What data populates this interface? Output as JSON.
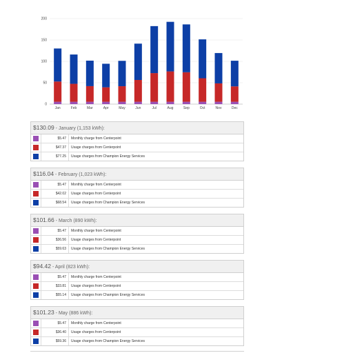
{
  "colors": {
    "monthly": "#9a4fb4",
    "centerpoint": "#c62828",
    "champion": "#0d3fa6"
  },
  "chart_data": {
    "type": "bar",
    "stacked": true,
    "categories": [
      "Jan",
      "Feb",
      "Mar",
      "Apr",
      "May",
      "Jun",
      "Jul",
      "Aug",
      "Sep",
      "Oct",
      "Nov",
      "Dec"
    ],
    "ylim": [
      0,
      200
    ],
    "yticks": [
      0,
      50,
      100,
      150,
      200
    ],
    "grid": true,
    "series": [
      {
        "key": "monthly",
        "color": "#9a4fb4",
        "values": [
          5.47,
          5.47,
          5.47,
          5.47,
          5.47,
          5.47,
          5.47,
          5.47,
          5.47,
          5.47,
          5.47,
          5.47
        ]
      },
      {
        "key": "centerpoint",
        "color": "#c62828",
        "values": [
          47.37,
          42.02,
          36.56,
          33.81,
          36.4,
          51,
          67,
          71,
          69,
          55,
          43,
          36
        ]
      },
      {
        "key": "champion",
        "color": "#0d3fa6",
        "values": [
          77.25,
          68.54,
          59.63,
          55.14,
          59.36,
          85,
          110,
          116,
          112,
          91,
          71,
          60
        ]
      }
    ]
  },
  "months": [
    {
      "total": "$130.09",
      "label": " - January (1,153 kWh):",
      "items": [
        {
          "amount": "$5.47",
          "desc": "Monthly charge from Centerpoint",
          "color": "#9a4fb4"
        },
        {
          "amount": "$47.37",
          "desc": "Usage charges from Centerpoint",
          "color": "#c62828"
        },
        {
          "amount": "$77.25",
          "desc": "Usage charges from Champion Energy Services",
          "color": "#0d3fa6"
        }
      ]
    },
    {
      "total": "$116.04",
      "label": " - February (1,023 kWh):",
      "items": [
        {
          "amount": "$5.47",
          "desc": "Monthly charge from Centerpoint",
          "color": "#9a4fb4"
        },
        {
          "amount": "$42.02",
          "desc": "Usage charges from Centerpoint",
          "color": "#c62828"
        },
        {
          "amount": "$68.54",
          "desc": "Usage charges from Champion Energy Services",
          "color": "#0d3fa6"
        }
      ]
    },
    {
      "total": "$101.66",
      "label": " - March (890 kWh):",
      "items": [
        {
          "amount": "$5.47",
          "desc": "Monthly charge from Centerpoint",
          "color": "#9a4fb4"
        },
        {
          "amount": "$36.56",
          "desc": "Usage charges from Centerpoint",
          "color": "#c62828"
        },
        {
          "amount": "$59.63",
          "desc": "Usage charges from Champion Energy Services",
          "color": "#0d3fa6"
        }
      ]
    },
    {
      "total": "$94.42",
      "label": " - April (823 kWh):",
      "items": [
        {
          "amount": "$5.47",
          "desc": "Monthly charge from Centerpoint",
          "color": "#9a4fb4"
        },
        {
          "amount": "$33.81",
          "desc": "Usage charges from Centerpoint",
          "color": "#c62828"
        },
        {
          "amount": "$55.14",
          "desc": "Usage charges from Champion Energy Services",
          "color": "#0d3fa6"
        }
      ]
    },
    {
      "total": "$101.23",
      "label": " - May (886 kWh):",
      "items": [
        {
          "amount": "$5.47",
          "desc": "Monthly charge from Centerpoint",
          "color": "#9a4fb4"
        },
        {
          "amount": "$36.40",
          "desc": "Usage charges from Centerpoint",
          "color": "#c62828"
        },
        {
          "amount": "$59.36",
          "desc": "Usage charges from Champion Energy Services",
          "color": "#0d3fa6"
        }
      ]
    }
  ]
}
